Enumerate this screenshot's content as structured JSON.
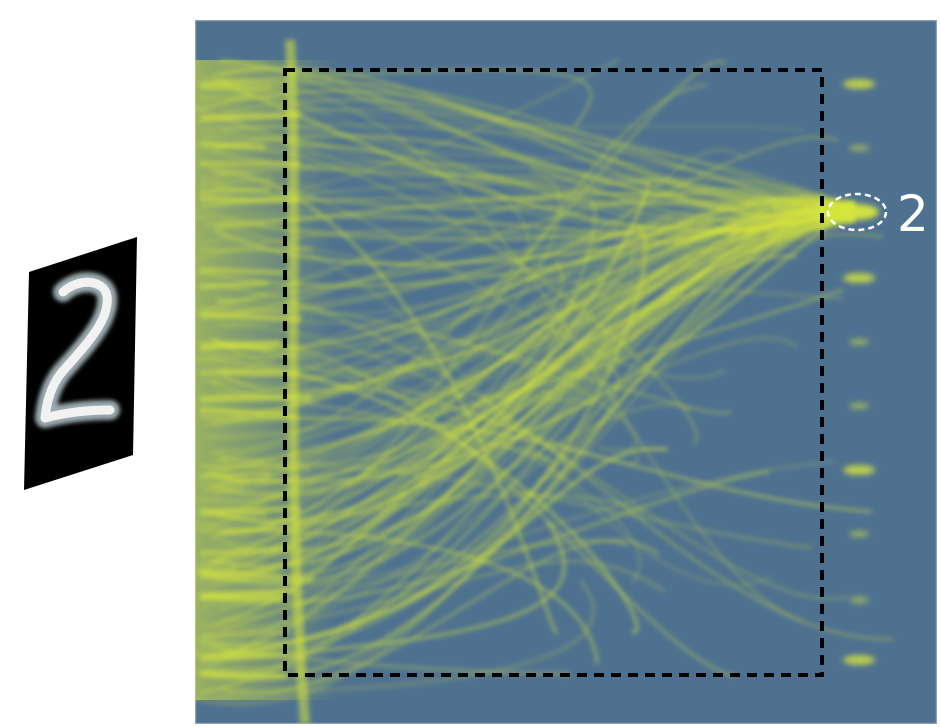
{
  "input_digit": {
    "glyph": "2",
    "background_color": "#000000",
    "stroke_color": "#f2f2f2"
  },
  "propagation_field": {
    "background_color": "#4f7190",
    "light_color": "#d6e63c",
    "border_color": "#8f9fad"
  },
  "detection_region": {
    "border_color": "#000000",
    "border_style": "dashed"
  },
  "detectors": {
    "count": 10,
    "selected_index": 2,
    "selected_label": "2",
    "marker_color": "#ffffff",
    "marker_style": "dashed-ellipse"
  }
}
